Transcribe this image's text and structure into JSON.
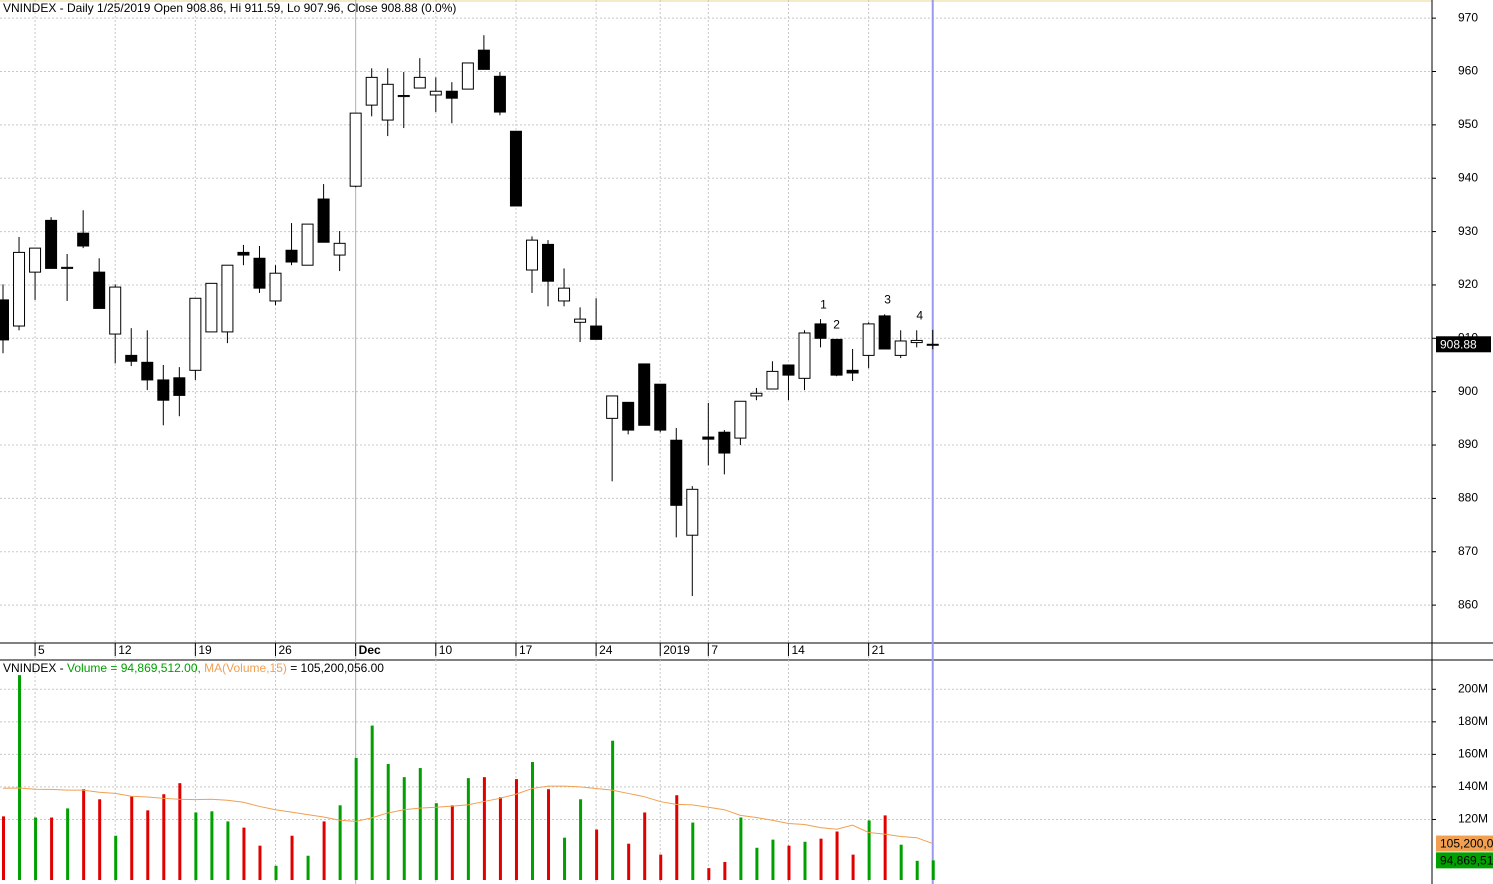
{
  "header": "VNINDEX - Daily 1/25/2019 Open 908.86, Hi 911.59, Lo 907.96, Close 908.88 (0.0%)",
  "chart_data": [
    {
      "type": "candlestick",
      "categories": [
        null,
        null,
        "5",
        null,
        null,
        null,
        null,
        "12",
        null,
        null,
        null,
        null,
        "19",
        null,
        null,
        null,
        null,
        "26",
        null,
        null,
        null,
        null,
        "Dec",
        null,
        null,
        null,
        null,
        "10",
        null,
        null,
        null,
        null,
        "17",
        null,
        null,
        null,
        null,
        "24",
        null,
        null,
        null,
        "2019",
        null,
        null,
        "7",
        null,
        null,
        null,
        null,
        "14",
        null,
        null,
        null,
        null,
        "21",
        null,
        null,
        null,
        null
      ],
      "open": [
        917.2,
        912.3,
        922.4,
        932.1,
        923.1,
        929.7,
        922.4,
        910.8,
        906.8,
        905.5,
        902.2,
        902.6,
        904.0,
        911.2,
        911.2,
        926.1,
        925.0,
        917.0,
        926.5,
        923.7,
        936.1,
        925.6,
        938.5,
        953.7,
        950.9,
        955.3,
        956.9,
        955.6,
        956.3,
        956.7,
        964.0,
        959.1,
        948.8,
        922.8,
        927.6,
        917.0,
        913.0,
        912.3,
        895.0,
        898.0,
        905.2,
        901.4,
        890.9,
        873.1,
        891.5,
        892.4,
        891.3,
        899.2,
        900.5,
        905.0,
        902.5,
        912.7,
        909.8,
        904.0,
        906.8,
        914.2,
        906.8,
        909.2,
        908.86
      ],
      "high": [
        920.1,
        929.0,
        926.9,
        932.7,
        925.8,
        934.0,
        925.0,
        920.1,
        911.9,
        911.5,
        905.0,
        904.6,
        917.5,
        920.3,
        923.7,
        927.5,
        927.3,
        923.7,
        931.6,
        931.4,
        938.9,
        930.1,
        952.2,
        960.6,
        960.6,
        959.9,
        962.5,
        958.9,
        958.0,
        961.6,
        966.8,
        959.9,
        948.8,
        929.1,
        928.4,
        923.1,
        915.8,
        917.5,
        899.2,
        898.0,
        905.2,
        901.4,
        893.2,
        882.3,
        897.9,
        892.8,
        898.2,
        900.7,
        905.7,
        905.0,
        911.5,
        913.6,
        909.8,
        908.0,
        913.0,
        914.5,
        911.5,
        911.5,
        911.59
      ],
      "low": [
        907.2,
        911.5,
        917.2,
        923.1,
        917.0,
        926.9,
        915.6,
        905.3,
        904.8,
        900.3,
        893.7,
        895.4,
        902.2,
        911.2,
        909.1,
        923.7,
        918.5,
        916.2,
        923.7,
        923.7,
        928.0,
        922.6,
        938.3,
        951.6,
        947.9,
        949.4,
        956.9,
        952.4,
        950.3,
        956.7,
        960.4,
        951.8,
        934.8,
        918.5,
        916.0,
        916.0,
        909.3,
        909.8,
        883.2,
        892.0,
        893.7,
        892.4,
        872.7,
        861.7,
        886.2,
        884.5,
        890.0,
        898.4,
        900.5,
        898.4,
        900.3,
        908.3,
        902.9,
        902.0,
        904.4,
        908.0,
        906.3,
        908.3,
        907.96
      ],
      "close": [
        909.7,
        926.1,
        926.9,
        923.1,
        923.3,
        927.3,
        915.6,
        919.6,
        905.7,
        902.2,
        898.4,
        899.3,
        917.5,
        920.3,
        923.7,
        925.6,
        919.4,
        922.2,
        924.3,
        931.4,
        928.0,
        927.8,
        952.2,
        958.9,
        957.6,
        955.5,
        958.9,
        956.3,
        955.0,
        961.6,
        960.4,
        952.4,
        934.8,
        928.4,
        920.7,
        919.4,
        913.6,
        909.8,
        899.2,
        892.8,
        893.7,
        892.8,
        878.7,
        881.7,
        891.1,
        888.5,
        898.2,
        899.7,
        903.8,
        903.1,
        911.0,
        910.0,
        903.1,
        903.5,
        912.7,
        908.0,
        909.5,
        909.6,
        908.88
      ],
      "annotations": [
        null,
        null,
        null,
        null,
        null,
        null,
        null,
        null,
        null,
        null,
        null,
        null,
        null,
        null,
        null,
        null,
        null,
        null,
        null,
        null,
        null,
        null,
        null,
        null,
        null,
        null,
        null,
        null,
        null,
        null,
        null,
        null,
        null,
        null,
        null,
        null,
        null,
        null,
        null,
        null,
        null,
        null,
        null,
        null,
        null,
        null,
        null,
        null,
        null,
        null,
        null,
        "1",
        "2",
        null,
        null,
        "3",
        null,
        "4",
        null
      ],
      "annotation_color": "#e00000",
      "up_color": "#ffffff",
      "down_color": "#000000",
      "ylim": [
        852.9,
        973.4
      ],
      "yticks": [
        860,
        870,
        880,
        890,
        900,
        910,
        920,
        930,
        940,
        950,
        960,
        970
      ],
      "grid": true
    },
    {
      "type": "bar",
      "title": "VNINDEX -",
      "series": [
        {
          "name": "Volume",
          "legend_value": "= 94,869,512.00,",
          "last_label": "94,869,51",
          "up_color": "#00a000",
          "down_color": "#e00000",
          "color": "#00a000",
          "values": [
            121.9,
            208.7,
            121.2,
            121.2,
            126.8,
            138.6,
            132.4,
            110.0,
            134.3,
            125.6,
            135.5,
            142.3,
            124.3,
            125.0,
            118.8,
            115.0,
            103.9,
            91.5,
            110.0,
            97.7,
            118.8,
            128.7,
            157.8,
            177.7,
            154.1,
            146.0,
            151.6,
            130.0,
            128.7,
            145.4,
            146.0,
            133.6,
            144.8,
            155.3,
            138.6,
            108.8,
            132.4,
            113.8,
            168.4,
            105.1,
            124.3,
            98.4,
            134.9,
            118.1,
            90.1,
            93.9,
            121.2,
            102.6,
            107.6,
            103.9,
            106.3,
            108.2,
            112.6,
            98.4,
            119.4,
            122.5,
            104.5,
            94.6,
            94.869512
          ]
        },
        {
          "name": "MA(Volume,15)",
          "legend_value": "= 105,200,056.00",
          "last_label": "105,200,0",
          "color": "#f0a050",
          "values": [
            139.2,
            139.3,
            138.6,
            138.5,
            138.0,
            138.0,
            136.7,
            136.0,
            134.3,
            133.8,
            133.0,
            132.4,
            132.2,
            132.4,
            131.8,
            130.6,
            128.0,
            126.0,
            124.5,
            123.0,
            121.5,
            119.5,
            118.8,
            121.0,
            124.0,
            126.0,
            127.0,
            127.5,
            128.2,
            129.0,
            131.0,
            133.0,
            135.5,
            139.0,
            140.5,
            140.5,
            140.0,
            139.0,
            138.0,
            136.0,
            134.0,
            131.0,
            129.3,
            129.0,
            127.5,
            126.0,
            122.5,
            121.2,
            119.5,
            117.5,
            116.9,
            115.0,
            114.0,
            116.5,
            112.0,
            111.0,
            109.5,
            108.8,
            105.200056
          ]
        }
      ],
      "ylim": [
        82.8,
        218
      ],
      "yticks": [
        {
          "value": 120,
          "label": "120M"
        },
        {
          "value": 140,
          "label": "140M"
        },
        {
          "value": 160,
          "label": "160M"
        },
        {
          "value": 180,
          "label": "180M"
        },
        {
          "value": 200,
          "label": "200M"
        }
      ],
      "grid": true
    }
  ],
  "cursor_color": "#9a9aee"
}
